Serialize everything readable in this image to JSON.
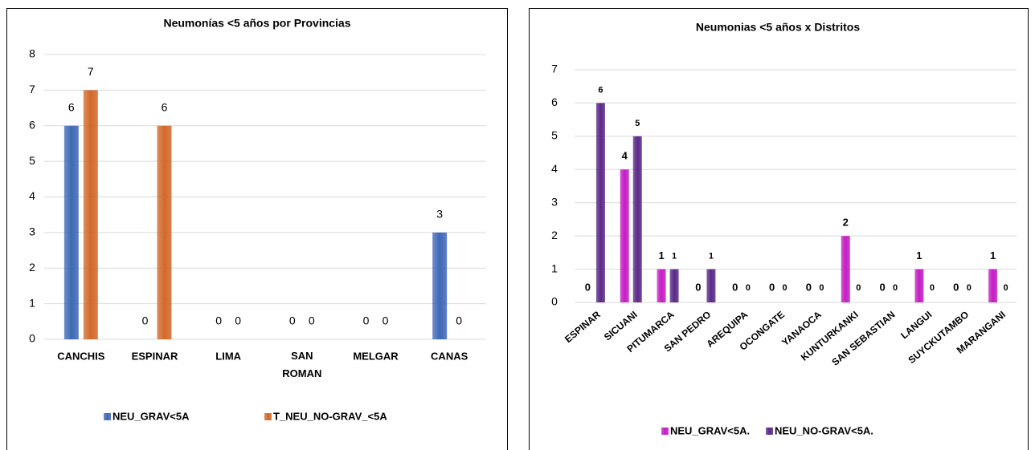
{
  "chart_data": [
    {
      "type": "bar",
      "title": "Neumonías <5 años por Provincias",
      "categories": [
        "CANCHIS",
        "ESPINAR",
        "LIMA",
        "SAN ROMAN",
        "MELGAR",
        "CANAS"
      ],
      "series": [
        {
          "name": "NEU_GRAV<5A",
          "color": "#3f69b5",
          "values": [
            6,
            0,
            0,
            0,
            0,
            3
          ]
        },
        {
          "name": "T_NEU_NO-GRAV_<5A",
          "color": "#d2692a",
          "values": [
            7,
            6,
            0,
            0,
            0,
            0
          ]
        }
      ],
      "ylim": [
        0,
        8
      ],
      "yticks": [
        0,
        1,
        2,
        3,
        4,
        5,
        6,
        7,
        8
      ],
      "grid": true,
      "legend": "bottom"
    },
    {
      "type": "bar",
      "title": "Neumonias <5 años x Distritos",
      "categories": [
        "ESPINAR",
        "SICUANI",
        "PITUMARCA",
        "SAN PEDRO",
        "AREQUIPA",
        "OCONGATE",
        "YANAOCA",
        "KUNTURKANKI",
        "SAN SEBASTIAN",
        "LANGUI",
        "SUYCKUTAMBO",
        "MARANGANI"
      ],
      "series": [
        {
          "name": "NEU_GRAV<5A.",
          "color": "#c41ec4",
          "values": [
            0,
            4,
            1,
            0,
            0,
            0,
            0,
            2,
            0,
            1,
            0,
            1
          ]
        },
        {
          "name": "NEU_NO-GRAV<5A.",
          "color": "#5a2a88",
          "values": [
            6,
            5,
            1,
            1,
            0,
            0,
            0,
            0,
            0,
            0,
            0,
            0
          ]
        }
      ],
      "ylim": [
        0,
        7
      ],
      "yticks": [
        0,
        1,
        2,
        3,
        4,
        5,
        6,
        7
      ],
      "grid": true,
      "legend": "bottom"
    }
  ]
}
